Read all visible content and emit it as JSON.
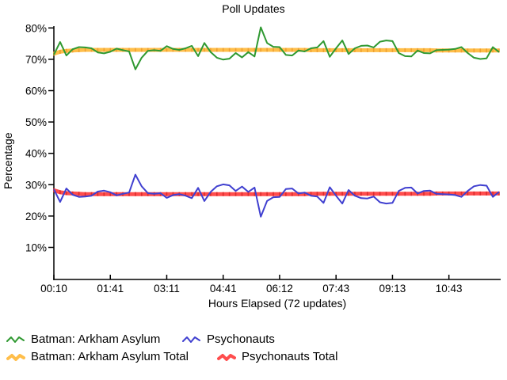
{
  "title": "Poll Updates",
  "axes": {
    "x_label": "Hours Elapsed (72 updates)",
    "y_label": "Percentage"
  },
  "legend": {
    "items": [
      {
        "label": "Batman: Arkham Asylum"
      },
      {
        "label": "Psychonauts"
      },
      {
        "label": "Batman: Arkham Asylum Total"
      },
      {
        "label": "Psychonauts Total"
      }
    ]
  },
  "chart_data": {
    "type": "line",
    "title": "Poll Updates",
    "xlabel": "Hours Elapsed (72 updates)",
    "ylabel": "Percentage",
    "ylim": [
      0,
      85
    ],
    "grid": false,
    "legend_position": "bottom",
    "n_points": 72,
    "x_tick_labels": [
      "00:10",
      "01:41",
      "03:11",
      "04:41",
      "06:12",
      "07:43",
      "09:13",
      "10:43"
    ],
    "x_tick_indices": [
      0,
      9,
      18,
      27,
      36,
      45,
      54,
      63
    ],
    "y_tick_values": [
      10,
      20,
      30,
      40,
      50,
      60,
      70,
      80
    ],
    "y_tick_labels": [
      "10%",
      "20%",
      "30%",
      "40%",
      "50%",
      "60%",
      "70%",
      "80%"
    ],
    "series": [
      {
        "name": "Batman: Arkham Asylum",
        "color": "#2f9931",
        "style": "thin",
        "values": [
          71.5,
          75.5,
          71.2,
          73.2,
          73.9,
          73.8,
          73.5,
          72.2,
          71.9,
          72.4,
          73.4,
          72.9,
          72.5,
          66.8,
          70.5,
          72.7,
          72.9,
          72.7,
          74.2,
          73.3,
          73.0,
          73.5,
          74.3,
          71.0,
          75.2,
          72.3,
          70.5,
          69.9,
          70.2,
          72.0,
          70.6,
          72.3,
          70.9,
          80.2,
          75.2,
          74.0,
          73.9,
          71.4,
          71.2,
          72.8,
          72.5,
          73.5,
          73.8,
          75.8,
          70.8,
          73.5,
          76.0,
          71.7,
          73.5,
          74.3,
          74.4,
          73.8,
          75.6,
          76.0,
          75.8,
          72.0,
          71.0,
          70.9,
          72.8,
          72.0,
          71.9,
          72.9,
          73.0,
          73.1,
          73.3,
          73.9,
          72.0,
          70.5,
          70.1,
          70.3,
          73.9,
          72.3
        ]
      },
      {
        "name": "Psychonauts",
        "color": "#4040d0",
        "style": "thin",
        "values": [
          28.5,
          24.5,
          28.8,
          26.8,
          26.1,
          26.2,
          26.5,
          27.8,
          28.1,
          27.6,
          26.6,
          27.1,
          27.5,
          33.2,
          29.5,
          27.3,
          27.1,
          27.3,
          25.8,
          26.7,
          27.0,
          26.5,
          25.7,
          29.0,
          24.8,
          27.7,
          29.5,
          30.1,
          29.8,
          28.0,
          29.4,
          27.7,
          29.1,
          19.8,
          24.8,
          26.0,
          26.1,
          28.6,
          28.8,
          27.2,
          27.5,
          26.5,
          26.2,
          24.2,
          29.2,
          26.5,
          24.0,
          28.3,
          26.5,
          25.7,
          25.6,
          26.2,
          24.4,
          24.0,
          24.2,
          28.0,
          29.0,
          29.1,
          27.2,
          28.0,
          28.1,
          27.1,
          27.0,
          26.9,
          26.7,
          26.1,
          28.0,
          29.5,
          29.9,
          29.7,
          26.1,
          27.7
        ]
      },
      {
        "name": "Batman: Arkham Asylum Total",
        "color": "#ffbe4a",
        "tick_color": "#efa030",
        "style": "thick",
        "values": [
          71.8,
          72.4,
          72.7,
          72.8,
          72.9,
          73.0,
          73.0,
          73.0,
          73.0,
          73.0,
          73.0,
          73.0,
          73.0,
          73.0,
          73.0,
          73.0,
          73.0,
          73.0,
          73.0,
          73.0,
          73.0,
          73.0,
          73.0,
          73.0,
          73.0,
          73.0,
          73.0,
          73.0,
          73.0,
          73.0,
          73.0,
          73.0,
          73.0,
          73.0,
          73.0,
          73.0,
          73.0,
          73.0,
          73.0,
          73.0,
          73.0,
          72.9,
          72.9,
          72.9,
          72.9,
          72.9,
          72.9,
          72.9,
          72.9,
          72.9,
          72.9,
          72.9,
          72.9,
          72.9,
          72.9,
          72.9,
          72.9,
          72.9,
          72.9,
          72.9,
          72.9,
          72.8,
          72.8,
          72.8,
          72.8,
          72.8,
          72.8,
          72.8,
          72.8,
          72.8,
          72.8,
          72.8
        ]
      },
      {
        "name": "Psychonauts Total",
        "color": "#ff4d4d",
        "tick_color": "#dd2c2c",
        "style": "thick",
        "values": [
          28.2,
          27.6,
          27.3,
          27.2,
          27.1,
          27.0,
          27.0,
          27.0,
          27.0,
          27.0,
          27.0,
          27.0,
          27.0,
          27.0,
          27.0,
          27.0,
          27.0,
          27.0,
          27.0,
          27.0,
          27.0,
          27.0,
          27.0,
          27.0,
          27.0,
          27.0,
          27.0,
          27.0,
          27.0,
          27.0,
          27.0,
          27.0,
          27.0,
          27.0,
          27.0,
          27.0,
          27.0,
          27.0,
          27.0,
          27.0,
          27.0,
          27.1,
          27.1,
          27.1,
          27.1,
          27.1,
          27.1,
          27.1,
          27.1,
          27.1,
          27.1,
          27.1,
          27.1,
          27.1,
          27.1,
          27.1,
          27.1,
          27.1,
          27.1,
          27.1,
          27.1,
          27.2,
          27.2,
          27.2,
          27.2,
          27.2,
          27.2,
          27.2,
          27.2,
          27.2,
          27.2,
          27.2
        ]
      }
    ]
  }
}
